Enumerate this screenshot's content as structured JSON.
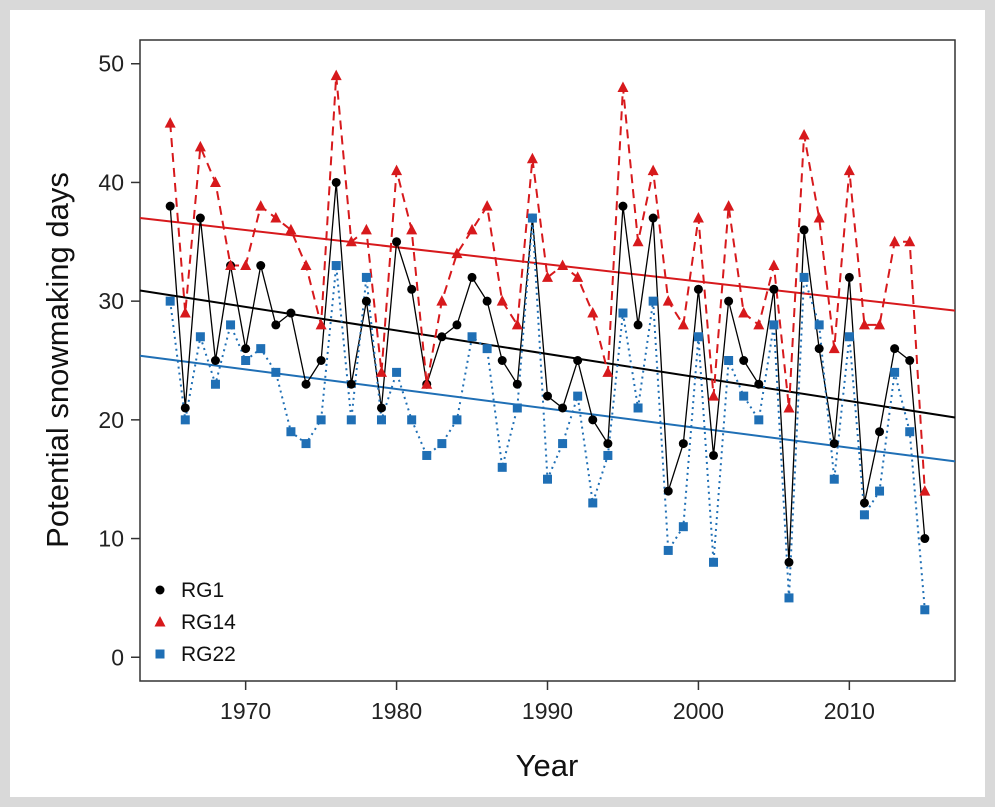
{
  "chart_data": {
    "type": "line",
    "xlabel": "Year",
    "ylabel": "Potential snowmaking days",
    "xlim": [
      1963,
      2017
    ],
    "ylim": [
      -2,
      52
    ],
    "xticks": [
      1970,
      1980,
      1990,
      2000,
      2010
    ],
    "yticks": [
      0,
      10,
      20,
      30,
      40,
      50
    ],
    "grid": false,
    "legend_position": "bottom-left",
    "x": [
      1965,
      1966,
      1967,
      1968,
      1969,
      1970,
      1971,
      1972,
      1973,
      1974,
      1975,
      1976,
      1977,
      1978,
      1979,
      1980,
      1981,
      1982,
      1983,
      1984,
      1985,
      1986,
      1987,
      1988,
      1989,
      1990,
      1991,
      1992,
      1993,
      1994,
      1995,
      1996,
      1997,
      1998,
      1999,
      2000,
      2001,
      2002,
      2003,
      2004,
      2005,
      2006,
      2007,
      2008,
      2009,
      2010,
      2011,
      2012,
      2013,
      2014,
      2015
    ],
    "series": [
      {
        "name": "RG1",
        "color": "#000000",
        "marker": "circle",
        "line_style": "solid",
        "values": [
          38,
          21,
          37,
          25,
          33,
          26,
          33,
          28,
          29,
          23,
          25,
          40,
          23,
          30,
          21,
          35,
          31,
          23,
          27,
          28,
          32,
          30,
          25,
          23,
          37,
          22,
          21,
          25,
          20,
          18,
          38,
          28,
          37,
          14,
          18,
          31,
          17,
          30,
          25,
          23,
          31,
          8,
          36,
          26,
          18,
          32,
          13,
          19,
          26,
          25,
          10
        ],
        "trend": [
          30.9,
          20.2
        ]
      },
      {
        "name": "RG14",
        "color": "#d7191c",
        "marker": "triangle",
        "line_style": "dashed",
        "values": [
          45,
          29,
          43,
          40,
          33,
          33,
          38,
          37,
          36,
          33,
          28,
          49,
          35,
          36,
          24,
          41,
          36,
          23,
          30,
          34,
          36,
          38,
          30,
          28,
          42,
          32,
          33,
          32,
          29,
          24,
          48,
          35,
          41,
          30,
          28,
          37,
          22,
          38,
          29,
          28,
          33,
          21,
          44,
          37,
          26,
          41,
          28,
          28,
          35,
          35,
          14
        ],
        "trend": [
          37.0,
          29.2
        ]
      },
      {
        "name": "RG22",
        "color": "#1f6fb5",
        "marker": "square",
        "line_style": "dotted",
        "values": [
          30,
          20,
          27,
          23,
          28,
          25,
          26,
          24,
          19,
          18,
          20,
          33,
          20,
          32,
          20,
          24,
          20,
          17,
          18,
          20,
          27,
          26,
          16,
          21,
          37,
          15,
          18,
          22,
          13,
          17,
          29,
          21,
          30,
          9,
          11,
          27,
          8,
          25,
          22,
          20,
          28,
          5,
          32,
          28,
          15,
          27,
          12,
          14,
          24,
          19,
          4
        ],
        "trend": [
          25.4,
          16.5
        ]
      }
    ]
  }
}
